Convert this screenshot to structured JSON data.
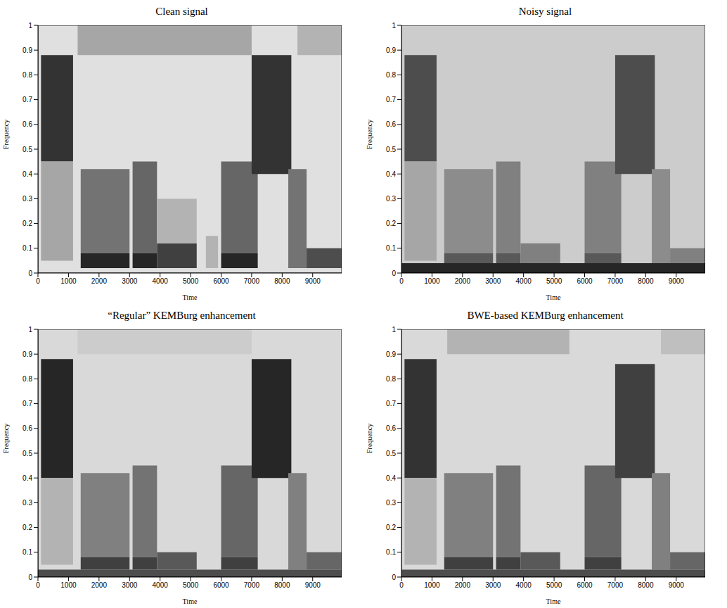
{
  "chart_data": [
    {
      "type": "heatmap",
      "title": "Clean signal",
      "x_label": "Time",
      "y_label": "Frequency",
      "xlim": [
        0,
        9950
      ],
      "ylim": [
        0,
        1
      ],
      "xticks": [
        0,
        1000,
        2000,
        3000,
        4000,
        5000,
        6000,
        7000,
        8000,
        9000
      ],
      "yticks": [
        0,
        0.1,
        0.2,
        0.3,
        0.4,
        0.5,
        0.6,
        0.7,
        0.8,
        0.9,
        1
      ],
      "cells": [
        {
          "x": [
            0,
            9950
          ],
          "y": [
            0,
            1
          ],
          "value": 0.12
        },
        {
          "x": [
            100,
            1150
          ],
          "y": [
            0.45,
            0.88
          ],
          "value": 0.8
        },
        {
          "x": [
            100,
            1150
          ],
          "y": [
            0.05,
            0.45
          ],
          "value": 0.35
        },
        {
          "x": [
            1400,
            3000
          ],
          "y": [
            0.08,
            0.42
          ],
          "value": 0.55
        },
        {
          "x": [
            1400,
            3000
          ],
          "y": [
            0.02,
            0.08
          ],
          "value": 0.85
        },
        {
          "x": [
            3100,
            3900
          ],
          "y": [
            0.08,
            0.45
          ],
          "value": 0.6
        },
        {
          "x": [
            3100,
            3900
          ],
          "y": [
            0.02,
            0.08
          ],
          "value": 0.85
        },
        {
          "x": [
            3900,
            5200
          ],
          "y": [
            0.02,
            0.12
          ],
          "value": 0.75
        },
        {
          "x": [
            3900,
            5200
          ],
          "y": [
            0.12,
            0.3
          ],
          "value": 0.3
        },
        {
          "x": [
            5500,
            5900
          ],
          "y": [
            0.02,
            0.15
          ],
          "value": 0.3
        },
        {
          "x": [
            6000,
            7200
          ],
          "y": [
            0.08,
            0.45
          ],
          "value": 0.6
        },
        {
          "x": [
            6000,
            7200
          ],
          "y": [
            0.02,
            0.08
          ],
          "value": 0.85
        },
        {
          "x": [
            7000,
            8300
          ],
          "y": [
            0.4,
            0.88
          ],
          "value": 0.8
        },
        {
          "x": [
            8200,
            8800
          ],
          "y": [
            0.02,
            0.42
          ],
          "value": 0.55
        },
        {
          "x": [
            8800,
            9950
          ],
          "y": [
            0.02,
            0.1
          ],
          "value": 0.7
        },
        {
          "x": [
            1300,
            7000
          ],
          "y": [
            0.88,
            1
          ],
          "value": 0.35
        },
        {
          "x": [
            8500,
            9950
          ],
          "y": [
            0.88,
            1
          ],
          "value": 0.3
        }
      ]
    },
    {
      "type": "heatmap",
      "title": "Noisy signal",
      "x_label": "Time",
      "y_label": "Frequency",
      "xlim": [
        0,
        9950
      ],
      "ylim": [
        0,
        1
      ],
      "xticks": [
        0,
        1000,
        2000,
        3000,
        4000,
        5000,
        6000,
        7000,
        8000,
        9000
      ],
      "yticks": [
        0,
        0.1,
        0.2,
        0.3,
        0.4,
        0.5,
        0.6,
        0.7,
        0.8,
        0.9,
        1
      ],
      "cells": [
        {
          "x": [
            0,
            9950
          ],
          "y": [
            0,
            1
          ],
          "value": 0.2
        },
        {
          "x": [
            100,
            1150
          ],
          "y": [
            0.45,
            0.88
          ],
          "value": 0.7
        },
        {
          "x": [
            100,
            1150
          ],
          "y": [
            0.05,
            0.45
          ],
          "value": 0.35
        },
        {
          "x": [
            1400,
            3000
          ],
          "y": [
            0.08,
            0.42
          ],
          "value": 0.45
        },
        {
          "x": [
            1400,
            3000
          ],
          "y": [
            0.04,
            0.08
          ],
          "value": 0.65
        },
        {
          "x": [
            3100,
            3900
          ],
          "y": [
            0.08,
            0.45
          ],
          "value": 0.5
        },
        {
          "x": [
            3100,
            3900
          ],
          "y": [
            0.04,
            0.08
          ],
          "value": 0.65
        },
        {
          "x": [
            3900,
            5200
          ],
          "y": [
            0.04,
            0.12
          ],
          "value": 0.5
        },
        {
          "x": [
            6000,
            7200
          ],
          "y": [
            0.08,
            0.45
          ],
          "value": 0.5
        },
        {
          "x": [
            6000,
            7200
          ],
          "y": [
            0.04,
            0.08
          ],
          "value": 0.65
        },
        {
          "x": [
            7000,
            8300
          ],
          "y": [
            0.4,
            0.88
          ],
          "value": 0.7
        },
        {
          "x": [
            8200,
            8800
          ],
          "y": [
            0.04,
            0.42
          ],
          "value": 0.45
        },
        {
          "x": [
            8800,
            9950
          ],
          "y": [
            0.04,
            0.1
          ],
          "value": 0.5
        },
        {
          "x": [
            0,
            9950
          ],
          "y": [
            0,
            0.04
          ],
          "value": 0.85
        }
      ]
    },
    {
      "type": "heatmap",
      "title": "“Regular” KEMBurg enhancement",
      "x_label": "Time",
      "y_label": "Frequency",
      "xlim": [
        0,
        9950
      ],
      "ylim": [
        0,
        1
      ],
      "xticks": [
        0,
        1000,
        2000,
        3000,
        4000,
        5000,
        6000,
        7000,
        8000,
        9000
      ],
      "yticks": [
        0,
        0.1,
        0.2,
        0.3,
        0.4,
        0.5,
        0.6,
        0.7,
        0.8,
        0.9,
        1
      ],
      "cells": [
        {
          "x": [
            0,
            9950
          ],
          "y": [
            0,
            1
          ],
          "value": 0.15
        },
        {
          "x": [
            100,
            1150
          ],
          "y": [
            0.4,
            0.88
          ],
          "value": 0.85
        },
        {
          "x": [
            100,
            1150
          ],
          "y": [
            0.05,
            0.4
          ],
          "value": 0.3
        },
        {
          "x": [
            1400,
            3000
          ],
          "y": [
            0.08,
            0.42
          ],
          "value": 0.5
        },
        {
          "x": [
            1400,
            3000
          ],
          "y": [
            0.03,
            0.08
          ],
          "value": 0.75
        },
        {
          "x": [
            3100,
            3900
          ],
          "y": [
            0.08,
            0.45
          ],
          "value": 0.55
        },
        {
          "x": [
            3100,
            3900
          ],
          "y": [
            0.03,
            0.08
          ],
          "value": 0.75
        },
        {
          "x": [
            3900,
            5200
          ],
          "y": [
            0.03,
            0.1
          ],
          "value": 0.65
        },
        {
          "x": [
            6000,
            7200
          ],
          "y": [
            0.08,
            0.45
          ],
          "value": 0.6
        },
        {
          "x": [
            6000,
            7200
          ],
          "y": [
            0.03,
            0.08
          ],
          "value": 0.75
        },
        {
          "x": [
            7000,
            8300
          ],
          "y": [
            0.4,
            0.88
          ],
          "value": 0.85
        },
        {
          "x": [
            8200,
            8800
          ],
          "y": [
            0.03,
            0.42
          ],
          "value": 0.5
        },
        {
          "x": [
            8800,
            9950
          ],
          "y": [
            0.03,
            0.1
          ],
          "value": 0.6
        },
        {
          "x": [
            0,
            9950
          ],
          "y": [
            0,
            0.03
          ],
          "value": 0.7
        },
        {
          "x": [
            1300,
            7000
          ],
          "y": [
            0.9,
            1
          ],
          "value": 0.2
        }
      ]
    },
    {
      "type": "heatmap",
      "title": "BWE-based KEMBurg enhancement",
      "x_label": "Time",
      "y_label": "Frequency",
      "xlim": [
        0,
        9950
      ],
      "ylim": [
        0,
        1
      ],
      "xticks": [
        0,
        1000,
        2000,
        3000,
        4000,
        5000,
        6000,
        7000,
        8000,
        9000
      ],
      "yticks": [
        0,
        0.1,
        0.2,
        0.3,
        0.4,
        0.5,
        0.6,
        0.7,
        0.8,
        0.9,
        1
      ],
      "cells": [
        {
          "x": [
            0,
            9950
          ],
          "y": [
            0,
            1
          ],
          "value": 0.15
        },
        {
          "x": [
            100,
            1150
          ],
          "y": [
            0.4,
            0.88
          ],
          "value": 0.8
        },
        {
          "x": [
            100,
            1150
          ],
          "y": [
            0.05,
            0.4
          ],
          "value": 0.3
        },
        {
          "x": [
            1400,
            3000
          ],
          "y": [
            0.08,
            0.42
          ],
          "value": 0.5
        },
        {
          "x": [
            1400,
            3000
          ],
          "y": [
            0.03,
            0.08
          ],
          "value": 0.75
        },
        {
          "x": [
            3100,
            3900
          ],
          "y": [
            0.08,
            0.45
          ],
          "value": 0.55
        },
        {
          "x": [
            3100,
            3900
          ],
          "y": [
            0.03,
            0.08
          ],
          "value": 0.75
        },
        {
          "x": [
            3900,
            5200
          ],
          "y": [
            0.03,
            0.1
          ],
          "value": 0.65
        },
        {
          "x": [
            6000,
            7200
          ],
          "y": [
            0.08,
            0.45
          ],
          "value": 0.6
        },
        {
          "x": [
            6000,
            7200
          ],
          "y": [
            0.03,
            0.08
          ],
          "value": 0.75
        },
        {
          "x": [
            7000,
            8300
          ],
          "y": [
            0.4,
            0.86
          ],
          "value": 0.75
        },
        {
          "x": [
            8200,
            8800
          ],
          "y": [
            0.03,
            0.42
          ],
          "value": 0.5
        },
        {
          "x": [
            8800,
            9950
          ],
          "y": [
            0.03,
            0.1
          ],
          "value": 0.6
        },
        {
          "x": [
            0,
            9950
          ],
          "y": [
            0,
            0.03
          ],
          "value": 0.7
        },
        {
          "x": [
            1500,
            5500
          ],
          "y": [
            0.9,
            1
          ],
          "value": 0.3
        },
        {
          "x": [
            8500,
            9950
          ],
          "y": [
            0.9,
            1
          ],
          "value": 0.25
        }
      ]
    }
  ]
}
